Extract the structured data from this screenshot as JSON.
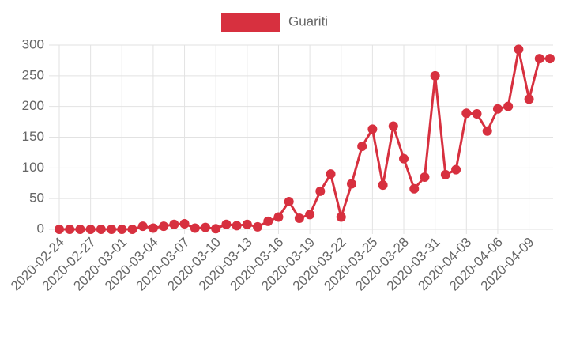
{
  "chart_data": {
    "type": "line",
    "categories": [
      "2020-02-24",
      null,
      null,
      "2020-02-27",
      null,
      null,
      "2020-03-01",
      null,
      null,
      "2020-03-04",
      null,
      null,
      "2020-03-07",
      null,
      null,
      "2020-03-10",
      null,
      null,
      "2020-03-13",
      null,
      null,
      "2020-03-16",
      null,
      null,
      "2020-03-19",
      null,
      null,
      "2020-03-22",
      null,
      null,
      "2020-03-25",
      null,
      null,
      "2020-03-28",
      null,
      null,
      "2020-03-31",
      null,
      null,
      "2020-04-03",
      null,
      null,
      "2020-04-06",
      null,
      null,
      "2020-04-09",
      null,
      null
    ],
    "series": [
      {
        "name": "Guariti",
        "color": "#d7303f",
        "values": [
          0,
          0,
          0,
          0,
          0,
          0,
          0,
          0,
          5,
          2,
          5,
          8,
          9,
          2,
          3,
          1,
          8,
          6,
          8,
          4,
          13,
          20,
          45,
          18,
          24,
          62,
          90,
          20,
          74,
          135,
          163,
          72,
          168,
          115,
          66,
          85,
          250,
          89,
          97,
          189,
          188,
          160,
          196,
          200,
          293,
          212,
          278,
          278
        ]
      }
    ],
    "ylim": [
      0,
      300
    ],
    "yticks": [
      0,
      50,
      100,
      150,
      200,
      250,
      300
    ],
    "grid": true,
    "legend": "top"
  }
}
